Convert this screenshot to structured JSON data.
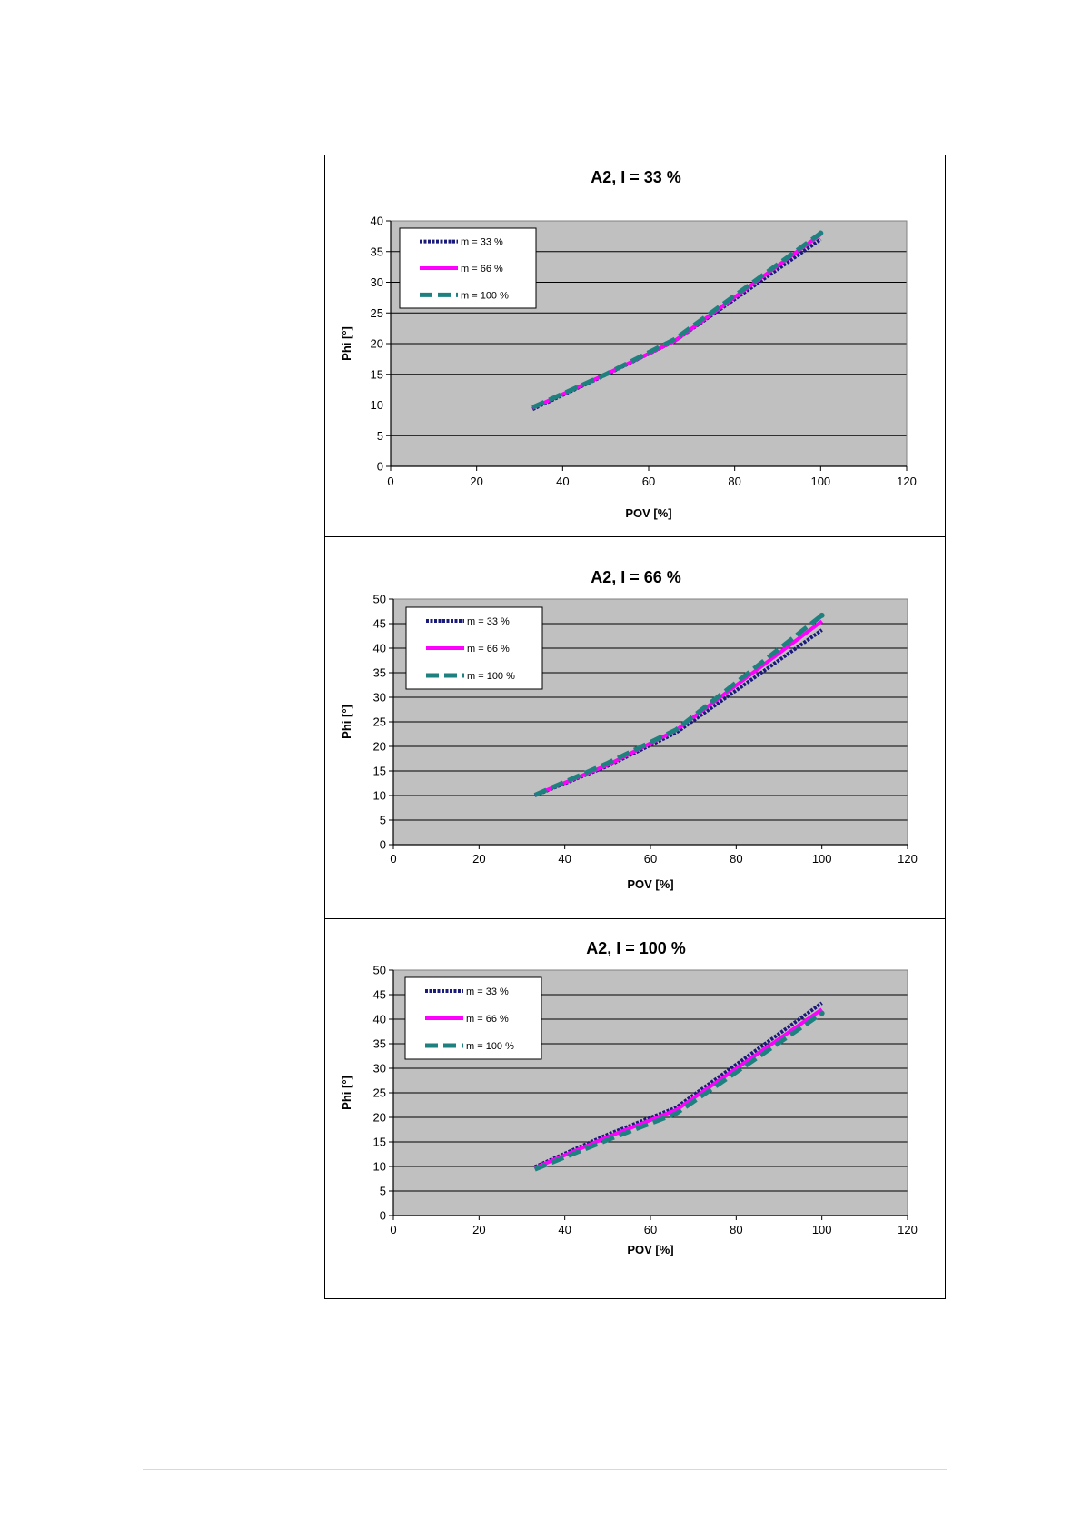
{
  "chart_data": [
    {
      "type": "line",
      "title": "A2, I = 33 %",
      "xlabel": "POV [%]",
      "ylabel": "Phi [°]",
      "xlim": [
        0,
        120
      ],
      "ylim": [
        0,
        40
      ],
      "xticks": [
        0,
        20,
        40,
        60,
        80,
        100,
        120
      ],
      "yticks": [
        0,
        5,
        10,
        15,
        20,
        25,
        30,
        35,
        40
      ],
      "grid": "horizontal",
      "legend": "top-left",
      "series": [
        {
          "name": "m = 33 %",
          "color": "#1a1a7a",
          "style": "dotted",
          "x": [
            33,
            50,
            66,
            100
          ],
          "y": [
            9.3,
            14.9,
            20.4,
            37.0
          ]
        },
        {
          "name": "m = 66 %",
          "color": "#ff00ff",
          "style": "solid",
          "x": [
            33,
            50,
            66,
            100
          ],
          "y": [
            9.5,
            15.0,
            20.4,
            37.8
          ]
        },
        {
          "name": "m = 100 %",
          "color": "#1f8080",
          "style": "dashed",
          "x": [
            33,
            50,
            66,
            100
          ],
          "y": [
            9.6,
            15.0,
            20.7,
            38.0
          ]
        }
      ]
    },
    {
      "type": "line",
      "title": "A2,  I = 66 %",
      "xlabel": "POV [%]",
      "ylabel": "Phi [°]",
      "xlim": [
        0,
        120
      ],
      "ylim": [
        0,
        50
      ],
      "xticks": [
        0,
        20,
        40,
        60,
        80,
        100,
        120
      ],
      "yticks": [
        0,
        5,
        10,
        15,
        20,
        25,
        30,
        35,
        40,
        45,
        50
      ],
      "grid": "horizontal",
      "legend": "top-left",
      "series": [
        {
          "name": "m = 33 %",
          "color": "#1a1a7a",
          "style": "dotted",
          "x": [
            33,
            50,
            66,
            100
          ],
          "y": [
            10.0,
            16.0,
            22.8,
            43.7
          ]
        },
        {
          "name": "m = 66 %",
          "color": "#ff00ff",
          "style": "solid",
          "x": [
            33,
            50,
            66,
            100
          ],
          "y": [
            10.1,
            16.2,
            23.3,
            45.5
          ]
        },
        {
          "name": "m = 100 %",
          "color": "#1f8080",
          "style": "dashed",
          "x": [
            33,
            50,
            66,
            100
          ],
          "y": [
            10.1,
            16.6,
            23.4,
            46.7
          ]
        }
      ]
    },
    {
      "type": "line",
      "title": "A2,  I = 100 %",
      "xlabel": "POV [%]",
      "ylabel": "Phi [°]",
      "xlim": [
        0,
        120
      ],
      "ylim": [
        0,
        50
      ],
      "xticks": [
        0,
        20,
        40,
        60,
        80,
        100,
        120
      ],
      "yticks": [
        0,
        5,
        10,
        15,
        20,
        25,
        30,
        35,
        40,
        45,
        50
      ],
      "grid": "horizontal",
      "legend": "top-left",
      "series": [
        {
          "name": "m = 33 %",
          "color": "#1a1a7a",
          "style": "dotted",
          "x": [
            33,
            50,
            66,
            100
          ],
          "y": [
            9.9,
            16.5,
            22.0,
            43.3
          ]
        },
        {
          "name": "m = 66 %",
          "color": "#ff00ff",
          "style": "solid",
          "x": [
            33,
            50,
            66,
            100
          ],
          "y": [
            9.7,
            16.0,
            21.5,
            42.0
          ]
        },
        {
          "name": "m = 100 %",
          "color": "#1f8080",
          "style": "dashed",
          "x": [
            33,
            50,
            66,
            100
          ],
          "y": [
            9.4,
            15.4,
            20.8,
            41.2
          ]
        }
      ]
    }
  ],
  "style": {
    "plot_background": "#c0c0c0",
    "grid_color": "#000000",
    "panel_border": "#000000"
  }
}
